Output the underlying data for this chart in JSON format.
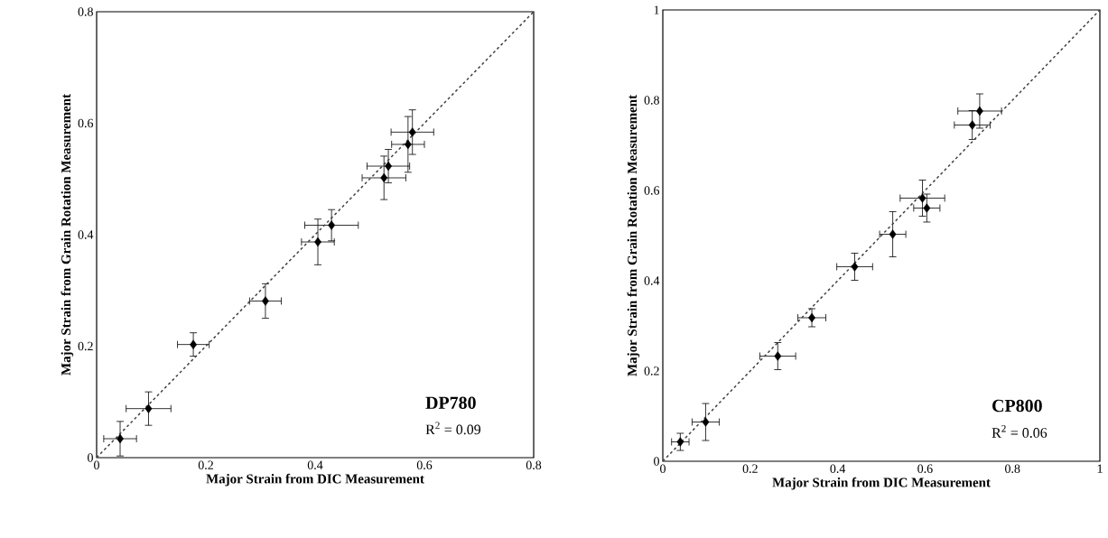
{
  "chart_data": [
    {
      "type": "scatter",
      "xlabel": "Major Strain from DIC Measurement",
      "ylabel": "Major Strain from  Grain Rotation Measurement",
      "xlim": [
        0,
        0.8
      ],
      "ylim": [
        0,
        0.8
      ],
      "xticks": [
        0,
        0.2,
        0.4,
        0.6,
        0.8
      ],
      "yticks": [
        0,
        0.2,
        0.4,
        0.6,
        0.8
      ],
      "marker": "diamond",
      "annotations": [
        "DP780",
        "R$^{2}$ = 0.09"
      ],
      "series": [
        {
          "color": "#000000",
          "x": [
            0.043,
            0.095,
            0.177,
            0.309,
            0.405,
            0.43,
            0.526,
            0.534,
            0.57,
            0.578
          ],
          "values": [
            0.034,
            0.088,
            0.203,
            0.281,
            0.387,
            0.417,
            0.502,
            0.523,
            0.562,
            0.584
          ],
          "xerrors": [
            0.03,
            0.041,
            0.029,
            0.029,
            0.03,
            0.049,
            0.04,
            0.039,
            0.03,
            0.039
          ],
          "errors": [
            0.031,
            0.03,
            0.021,
            0.031,
            0.041,
            0.028,
            0.039,
            0.03,
            0.05,
            0.04
          ]
        },
        {
          "type": "line",
          "color": "#404040",
          "line_style": "dashed",
          "marker": "none",
          "x": [
            0,
            0.8
          ],
          "values": [
            0,
            0.8
          ]
        }
      ]
    },
    {
      "type": "scatter",
      "xlabel": "Major Strain from DIC Measurement",
      "ylabel": "Major Strain from Grain Rotation Measurement",
      "xlim": [
        0,
        1
      ],
      "ylim": [
        0,
        1
      ],
      "xticks": [
        0,
        0.2,
        0.4,
        0.6,
        0.8,
        1
      ],
      "yticks": [
        0,
        0.2,
        0.4,
        0.6,
        0.8,
        1
      ],
      "marker": "diamond",
      "annotations": [
        "CP800",
        "R$^{2}$ = 0.06"
      ],
      "series": [
        {
          "color": "#000000",
          "x": [
            0.04,
            0.098,
            0.263,
            0.341,
            0.439,
            0.526,
            0.594,
            0.604,
            0.708,
            0.725
          ],
          "values": [
            0.043,
            0.087,
            0.233,
            0.318,
            0.431,
            0.503,
            0.583,
            0.561,
            0.745,
            0.776
          ],
          "xerrors": [
            0.02,
            0.031,
            0.041,
            0.032,
            0.041,
            0.03,
            0.051,
            0.03,
            0.041,
            0.05
          ],
          "errors": [
            0.019,
            0.041,
            0.03,
            0.02,
            0.03,
            0.05,
            0.04,
            0.031,
            0.032,
            0.038
          ]
        },
        {
          "type": "line",
          "color": "#404040",
          "line_style": "dashed",
          "marker": "none",
          "x": [
            0,
            1
          ],
          "values": [
            0,
            1
          ]
        }
      ]
    }
  ]
}
